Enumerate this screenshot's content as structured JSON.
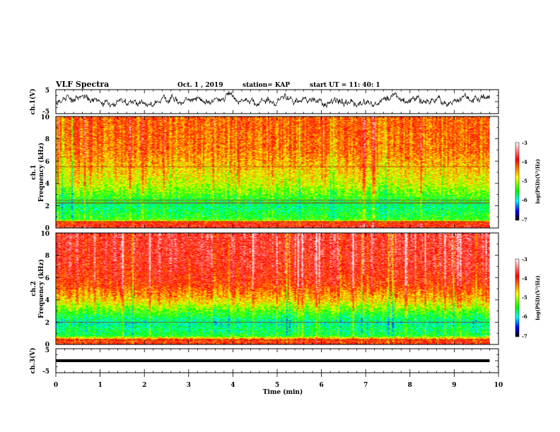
{
  "header": {
    "title": "VLF Spectra",
    "date": "Oct. 1 , 2019",
    "station": "station= KAP",
    "start": "start  UT =   11: 40: 1"
  },
  "colorbar": {
    "label": "log(PSD)(V²/Hz)",
    "ticks": [
      -3,
      -4,
      -5,
      -6,
      -7
    ],
    "colors": [
      "#ffffff",
      "#ff0000",
      "#ffff00",
      "#00ff00",
      "#00ffff",
      "#0000ff",
      "#000000"
    ]
  },
  "chart_data": [
    {
      "type": "line",
      "panel": "ch1-voltage",
      "ylabel": "ch.1(V)",
      "ylim": [
        -5,
        5
      ],
      "yticks": [
        "5",
        "-5"
      ],
      "x_range_min": [
        0,
        9.8
      ],
      "description_values": {
        "mean": 0.5,
        "amplitude": 2
      }
    },
    {
      "type": "heatmap",
      "panel": "ch1-spectrogram",
      "ylabel": "ch.1",
      "ylabel2": "Frequency (kHz)",
      "ylim": [
        0,
        10
      ],
      "yticks": [
        "0",
        "2",
        "4",
        "6",
        "8",
        "10"
      ],
      "xlim": [
        0,
        10
      ],
      "data_x_range_min": [
        0,
        9.8
      ],
      "zlim": [
        -7,
        -3
      ],
      "lines_khz": [
        5.5,
        2.5,
        2.3,
        2.2,
        0.6,
        0.5
      ],
      "profile_khz": [
        [
          0,
          -3.8
        ],
        [
          0.5,
          -4.0
        ],
        [
          0.8,
          -5.4
        ],
        [
          2.0,
          -5.7
        ],
        [
          3.0,
          -5.3
        ],
        [
          4.0,
          -4.9
        ],
        [
          5.5,
          -4.6
        ],
        [
          7.0,
          -4.3
        ],
        [
          10,
          -4.2
        ]
      ]
    },
    {
      "type": "heatmap",
      "panel": "ch2-spectrogram",
      "ylabel": "ch.2",
      "ylabel2": "Frequency (kHz)",
      "ylim": [
        0,
        10
      ],
      "yticks": [
        "0",
        "2",
        "4",
        "6",
        "8",
        "10"
      ],
      "xlim": [
        0,
        10
      ],
      "data_x_range_min": [
        0,
        9.8
      ],
      "zlim": [
        -7,
        -3
      ],
      "lines_khz": [
        2.0,
        0.4
      ],
      "profile_khz": [
        [
          0,
          -3.9
        ],
        [
          0.5,
          -4.2
        ],
        [
          0.8,
          -5.5
        ],
        [
          2.0,
          -5.8
        ],
        [
          3.0,
          -5.3
        ],
        [
          4.0,
          -4.6
        ],
        [
          5.5,
          -4.0
        ],
        [
          7.0,
          -3.8
        ],
        [
          10,
          -3.7
        ]
      ]
    },
    {
      "type": "line",
      "panel": "ch3-voltage",
      "ylabel": "ch.3(V)",
      "ylim": [
        -5,
        5
      ],
      "yticks": [
        "5",
        "-5"
      ],
      "x_range_min": [
        0,
        9.8
      ],
      "values": {
        "level": 0
      }
    }
  ],
  "x_axis": {
    "label": "Time (min)",
    "ticks": [
      "0",
      "1",
      "2",
      "3",
      "4",
      "5",
      "6",
      "7",
      "8",
      "9",
      "10"
    ],
    "range": [
      0,
      10
    ]
  }
}
